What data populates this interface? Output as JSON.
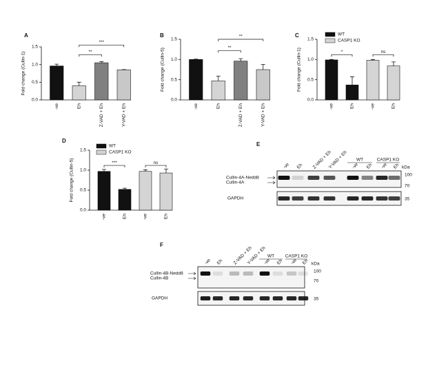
{
  "chart_data": [
    {
      "type": "bar",
      "label": "A",
      "ylabel": "Fold change (Cullin-1)",
      "categories": [
        "-ve",
        "Eh",
        "Z-VAD + Eh",
        "Y-VAD + Eh"
      ],
      "values": [
        0.96,
        0.4,
        1.05,
        0.85
      ],
      "errors": [
        0.05,
        0.1,
        0.03,
        0.01
      ],
      "colors": [
        "#111111",
        "#d4d4d4",
        "#808080",
        "#c8c8c8"
      ],
      "ylim": [
        0,
        1.5
      ],
      "yticks": [
        {
          "value": 0,
          "label": "0.0"
        },
        0.5,
        {
          "value": 1,
          "label": "1.0"
        },
        1.5
      ],
      "annotations": [
        "**",
        "***"
      ]
    },
    {
      "type": "bar",
      "label": "B",
      "ylabel": "Fold change (Cullin-5)",
      "categories": [
        "-ve",
        "Eh",
        "Z-VAD + Eh",
        "Y-VAD + Eh"
      ],
      "values": [
        1.0,
        0.47,
        0.96,
        0.75
      ],
      "errors": [
        0.01,
        0.12,
        0.06,
        0.13
      ],
      "colors": [
        "#111111",
        "#d4d4d4",
        "#808080",
        "#c8c8c8"
      ],
      "ylim": [
        0,
        1.5
      ],
      "yticks": [
        {
          "value": 0,
          "label": "0.0"
        },
        0.5,
        {
          "value": 1,
          "label": "1.0"
        },
        1.5
      ],
      "annotations": [
        "**",
        "**"
      ]
    },
    {
      "type": "bar",
      "label": "C",
      "ylabel": "Fold change (Cullin-1)",
      "categories": [
        "-ve",
        "Eh",
        "-ve",
        "Eh"
      ],
      "values": [
        0.99,
        0.37,
        0.98,
        0.84
      ],
      "errors": [
        0.01,
        0.2,
        0.02,
        0.1
      ],
      "colors": [
        "#111111",
        "#111111",
        "#d4d4d4",
        "#d4d4d4"
      ],
      "legend": [
        {
          "name": "WT",
          "color": "#111111"
        },
        {
          "name": "CASP1 KO",
          "color": "#d4d4d4"
        }
      ],
      "ylim": [
        0,
        1.5
      ],
      "yticks": [
        {
          "value": 0,
          "label": "0.0"
        },
        0.5,
        {
          "value": 1,
          "label": "1.0"
        },
        1.5
      ],
      "annotations": [
        "*",
        "ns"
      ]
    },
    {
      "type": "bar",
      "label": "D",
      "ylabel": "Fold change (Cullin-5)",
      "categories": [
        "-ve",
        "Eh",
        "-ve",
        "Eh"
      ],
      "values": [
        0.97,
        0.52,
        0.97,
        0.93
      ],
      "errors": [
        0.05,
        0.03,
        0.04,
        0.1
      ],
      "colors": [
        "#111111",
        "#111111",
        "#d4d4d4",
        "#d4d4d4"
      ],
      "legend": [
        {
          "name": "WT",
          "color": "#111111"
        },
        {
          "name": "CASP1 KO",
          "color": "#d4d4d4"
        }
      ],
      "ylim": [
        0,
        1.5
      ],
      "yticks": [
        {
          "value": 0,
          "label": "0.0"
        },
        0.5,
        {
          "value": 1,
          "label": "1.0"
        },
        1.5
      ],
      "annotations": [
        "***",
        "ns"
      ]
    }
  ],
  "blots": [
    {
      "label": "E",
      "lanes": [
        "-ve",
        "Eh",
        "Z-VAD + Eh",
        "Y-VAD + Eh",
        "-ve",
        "Eh",
        "-ve",
        "Eh"
      ],
      "groups": [
        "WT",
        "CASP1 KO"
      ],
      "bands": [
        "Cullin-4A-Nedd8",
        "Cullin-4A"
      ],
      "loading": "GAPDH",
      "unit": "kDa",
      "markers": [
        "100",
        "70",
        "35"
      ]
    },
    {
      "label": "F",
      "lanes": [
        "-ve",
        "Eh",
        "Z-VAD + Eh",
        "Y-VAD + Eh",
        "-ve",
        "Eh",
        "-ve",
        "Eh"
      ],
      "groups": [
        "WT",
        "CASP1 KO"
      ],
      "bands": [
        "Cullin-4B-Nedd8",
        "Cullin-4B"
      ],
      "loading": "GAPDH",
      "unit": "kDa",
      "markers": [
        "100",
        "70",
        "35"
      ]
    }
  ]
}
